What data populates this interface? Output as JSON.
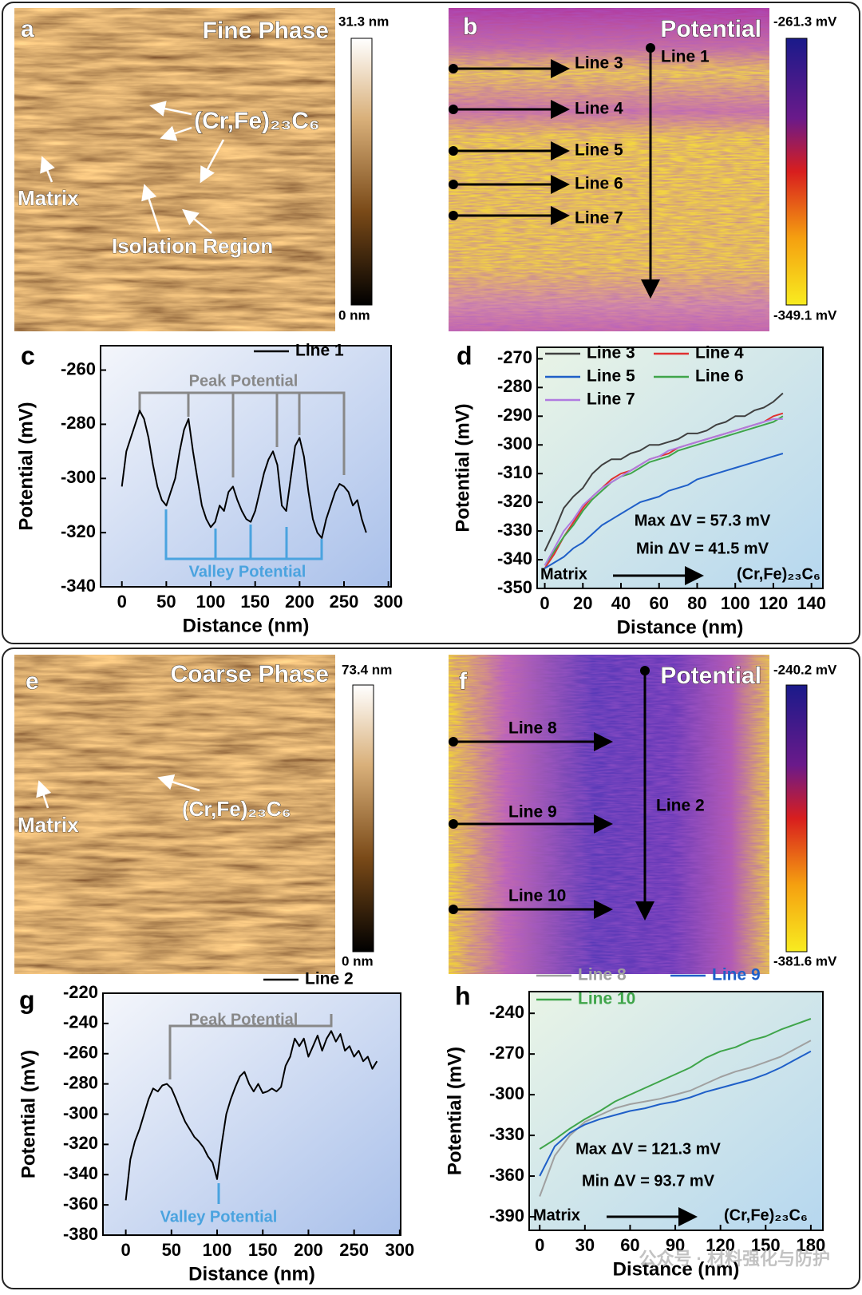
{
  "images": [
    {
      "panel": "a",
      "title": "Fine Phase",
      "colorbar": [
        "31.3 nm",
        "0 nm"
      ],
      "labels": [
        "(Cr,Fe)₂₃C₆",
        "Matrix",
        "Isolation Region"
      ]
    },
    {
      "panel": "b",
      "title": "Potential",
      "colorbar": [
        "-261.3 mV",
        "-349.1 mV"
      ],
      "labels": [
        "Line 1",
        "Line 3",
        "Line 4",
        "Line 5",
        "Line 6",
        "Line 7"
      ]
    },
    {
      "panel": "e",
      "title": "Coarse Phase",
      "colorbar": [
        "73.4 nm",
        "0 nm"
      ],
      "labels": [
        "(Cr,Fe)₂₃C₆",
        "Matrix"
      ]
    },
    {
      "panel": "f",
      "title": "Potential",
      "colorbar": [
        "-240.2 mV",
        "-381.6 mV"
      ],
      "labels": [
        "Line 8",
        "Line 9",
        "Line 10",
        "Line 2"
      ]
    }
  ],
  "chart_data": [
    {
      "type": "line",
      "panel": "c",
      "x_label": "Distance (nm)",
      "y_label": "Potential (mV)",
      "x": [
        0,
        5,
        10,
        15,
        20,
        25,
        30,
        35,
        40,
        45,
        50,
        55,
        60,
        65,
        70,
        75,
        80,
        85,
        90,
        95,
        100,
        105,
        110,
        115,
        120,
        125,
        130,
        135,
        140,
        145,
        150,
        155,
        160,
        165,
        170,
        175,
        180,
        185,
        190,
        195,
        200,
        205,
        210,
        215,
        220,
        225,
        230,
        235,
        240,
        245,
        250,
        255,
        260,
        265,
        270,
        275
      ],
      "series": [
        {
          "name": "Line 1",
          "color": "#000000",
          "values": [
            -303,
            -290,
            -285,
            -280,
            -275,
            -278,
            -285,
            -295,
            -303,
            -308,
            -310,
            -305,
            -300,
            -290,
            -282,
            -278,
            -290,
            -300,
            -310,
            -315,
            -318,
            -316,
            -310,
            -312,
            -305,
            -303,
            -308,
            -312,
            -315,
            -316,
            -312,
            -305,
            -298,
            -293,
            -290,
            -295,
            -310,
            -312,
            -300,
            -288,
            -285,
            -292,
            -305,
            -315,
            -320,
            -322,
            -315,
            -310,
            -305,
            -302,
            -303,
            -305,
            -310,
            -308,
            -315,
            -320
          ]
        }
      ],
      "xlim": [
        -24,
        303
      ],
      "xticks": [
        0,
        50,
        100,
        150,
        200,
        250,
        300
      ],
      "ylim": [
        -340,
        -251
      ],
      "yticks": [
        -340,
        -320,
        -300,
        -280,
        -260
      ],
      "annotations": [
        "Peak Potential",
        "Valley Potential"
      ]
    },
    {
      "type": "line",
      "panel": "d",
      "x_label": "Distance (nm)",
      "y_label": "Potential (mV)",
      "x": [
        0,
        5,
        10,
        15,
        20,
        25,
        30,
        35,
        40,
        45,
        50,
        55,
        60,
        65,
        70,
        75,
        80,
        85,
        90,
        95,
        100,
        105,
        110,
        115,
        120,
        125
      ],
      "series": [
        {
          "name": "Line 3",
          "color": "#404040",
          "values": [
            -337,
            -330,
            -322,
            -318,
            -315,
            -310,
            -307,
            -305,
            -305,
            -303,
            -302,
            -300,
            -300,
            -299,
            -298,
            -296,
            -296,
            -295,
            -293,
            -292,
            -290,
            -290,
            -288,
            -287,
            -285,
            -282
          ]
        },
        {
          "name": "Line 4",
          "color": "#e03030",
          "values": [
            -343,
            -338,
            -332,
            -327,
            -322,
            -318,
            -315,
            -312,
            -310,
            -309,
            -307,
            -305,
            -304,
            -303,
            -301,
            -300,
            -299,
            -298,
            -297,
            -296,
            -295,
            -294,
            -293,
            -292,
            -290,
            -289
          ]
        },
        {
          "name": "Line 5",
          "color": "#1f5fc8",
          "values": [
            -343,
            -341,
            -339,
            -336,
            -334,
            -331,
            -328,
            -326,
            -324,
            -322,
            -320,
            -319,
            -318,
            -316,
            -315,
            -314,
            -312,
            -311,
            -310,
            -309,
            -308,
            -307,
            -306,
            -305,
            -304,
            -303
          ]
        },
        {
          "name": "Line 6",
          "color": "#3fa54a",
          "values": [
            -342,
            -337,
            -332,
            -328,
            -323,
            -319,
            -316,
            -313,
            -311,
            -310,
            -308,
            -306,
            -305,
            -304,
            -302,
            -301,
            -300,
            -299,
            -298,
            -297,
            -296,
            -295,
            -294,
            -293,
            -292,
            -290
          ]
        },
        {
          "name": "Line 7",
          "color": "#b07ae0",
          "values": [
            -342,
            -336,
            -330,
            -326,
            -321,
            -318,
            -315,
            -313,
            -311,
            -309,
            -307,
            -305,
            -304,
            -302,
            -301,
            -300,
            -299,
            -298,
            -297,
            -296,
            -295,
            -294,
            -293,
            -292,
            -291,
            -291
          ]
        }
      ],
      "xlim": [
        -4,
        146
      ],
      "xticks": [
        0,
        20,
        40,
        60,
        80,
        100,
        120,
        140
      ],
      "ylim": [
        -350,
        -266
      ],
      "yticks": [
        -350,
        -340,
        -330,
        -320,
        -310,
        -300,
        -290,
        -280,
        -270
      ],
      "annotations": [
        "Max ΔV = 57.3 mV",
        "Min ΔV = 41.5 mV",
        "Matrix",
        "(Cr,Fe)₂₃C₆"
      ]
    },
    {
      "type": "line",
      "panel": "g",
      "x_label": "Distance (nm)",
      "y_label": "Potential (mV)",
      "x": [
        0,
        5,
        10,
        15,
        20,
        25,
        30,
        35,
        40,
        45,
        50,
        55,
        60,
        65,
        70,
        75,
        80,
        85,
        90,
        95,
        100,
        105,
        110,
        115,
        120,
        125,
        130,
        135,
        140,
        145,
        150,
        155,
        160,
        165,
        170,
        175,
        180,
        185,
        190,
        195,
        200,
        205,
        210,
        215,
        220,
        225,
        230,
        235,
        240,
        245,
        250,
        255,
        260,
        265,
        270,
        275
      ],
      "series": [
        {
          "name": "Line 2",
          "color": "#000000",
          "values": [
            -357,
            -330,
            -318,
            -310,
            -300,
            -290,
            -283,
            -285,
            -281,
            -280,
            -283,
            -290,
            -298,
            -305,
            -310,
            -315,
            -318,
            -322,
            -328,
            -332,
            -343,
            -320,
            -300,
            -290,
            -282,
            -275,
            -272,
            -280,
            -285,
            -280,
            -286,
            -285,
            -283,
            -285,
            -282,
            -268,
            -262,
            -250,
            -255,
            -250,
            -262,
            -255,
            -248,
            -258,
            -250,
            -245,
            -252,
            -247,
            -258,
            -255,
            -262,
            -258,
            -265,
            -262,
            -270,
            -265
          ]
        }
      ],
      "xlim": [
        -25,
        301
      ],
      "xticks": [
        0,
        50,
        100,
        150,
        200,
        250,
        300
      ],
      "ylim": [
        -380,
        -220
      ],
      "yticks": [
        -380,
        -360,
        -340,
        -320,
        -300,
        -280,
        -260,
        -240,
        -220
      ],
      "annotations": [
        "Peak Potential",
        "Valley Potential"
      ]
    },
    {
      "type": "line",
      "panel": "h",
      "x_label": "Distance (nm)",
      "y_label": "Potential (mV)",
      "x": [
        0,
        10,
        20,
        30,
        40,
        50,
        60,
        70,
        80,
        90,
        100,
        110,
        120,
        130,
        140,
        150,
        160,
        170,
        180
      ],
      "series": [
        {
          "name": "Line 8",
          "color": "#a0a0a0",
          "values": [
            -375,
            -345,
            -330,
            -320,
            -315,
            -310,
            -307,
            -305,
            -303,
            -300,
            -297,
            -292,
            -287,
            -283,
            -280,
            -276,
            -272,
            -266,
            -260
          ]
        },
        {
          "name": "Line 9",
          "color": "#1f5fc8",
          "values": [
            -360,
            -338,
            -328,
            -322,
            -318,
            -315,
            -312,
            -310,
            -307,
            -305,
            -302,
            -298,
            -295,
            -292,
            -289,
            -285,
            -280,
            -274,
            -268
          ]
        },
        {
          "name": "Line 10",
          "color": "#3fa54a",
          "values": [
            -340,
            -333,
            -325,
            -318,
            -312,
            -305,
            -300,
            -295,
            -290,
            -285,
            -280,
            -273,
            -268,
            -265,
            -260,
            -257,
            -252,
            -248,
            -244
          ]
        }
      ],
      "xlim": [
        -7,
        188
      ],
      "xticks": [
        0,
        30,
        60,
        90,
        120,
        150,
        180
      ],
      "ylim": [
        -400,
        -224
      ],
      "yticks": [
        -390,
        -360,
        -330,
        -300,
        -270,
        -240
      ],
      "annotations": [
        "Max ΔV = 121.3 mV",
        "Min ΔV = 93.7 mV",
        "Matrix",
        "(Cr,Fe)₂₃C₆"
      ]
    }
  ],
  "watermark": "公众号 · 材料强化与防护"
}
